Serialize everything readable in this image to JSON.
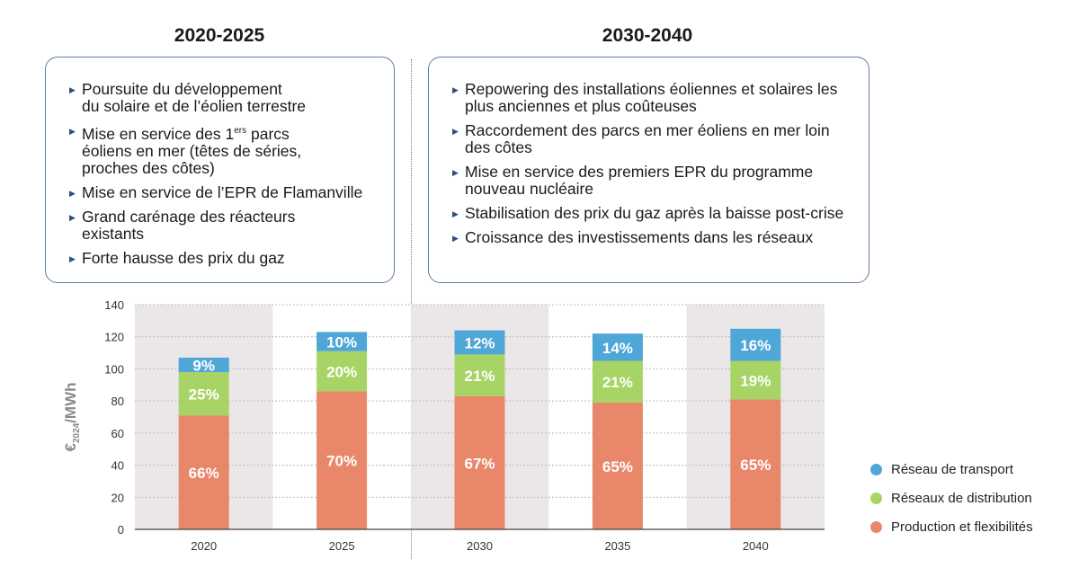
{
  "periods": [
    {
      "title": "2020-2025",
      "bullets": [
        "Poursuite du développement du solaire et de l’éolien terrestre",
        "Mise en service des 1ers parcs éoliens en mer (têtes de séries, proches des côtes)",
        "Mise en service de l’EPR de Flamanville",
        "Grand carénage des réacteurs existants",
        "Forte hausse des prix du gaz"
      ]
    },
    {
      "title": "2030-2040",
      "bullets": [
        "Repowering des installations éoliennes et solaires les plus anciennes et plus coûteuses",
        "Raccordement des parcs en mer éoliens en mer loin des côtes",
        "Mise en service des premiers EPR du programme nouveau nucléaire",
        "Stabilisation des prix du gaz après la baisse post-crise",
        "Croissance des investissements dans les réseaux"
      ]
    }
  ],
  "chart_data": {
    "type": "bar",
    "stacked": true,
    "categories": [
      "2020",
      "2025",
      "2030",
      "2035",
      "2040"
    ],
    "ylabel": "€2024/MWh",
    "ylim": [
      0,
      140
    ],
    "yticks": [
      0,
      20,
      40,
      60,
      80,
      100,
      120,
      140
    ],
    "series": [
      {
        "name": "Production et flexibilités",
        "color": "#e9876b",
        "values": [
          71,
          86,
          83,
          79,
          81
        ],
        "labels": [
          "66%",
          "70%",
          "67%",
          "65%",
          "65%"
        ]
      },
      {
        "name": "Réseaux de distribution",
        "color": "#a8d465",
        "values": [
          27,
          25,
          26,
          26,
          24
        ],
        "labels": [
          "25%",
          "20%",
          "21%",
          "21%",
          "19%"
        ]
      },
      {
        "name": "Réseau de transport",
        "color": "#4ea7d6",
        "values": [
          9,
          12,
          15,
          17,
          20
        ],
        "labels": [
          "9%",
          "10%",
          "12%",
          "14%",
          "16%"
        ]
      }
    ],
    "grid": true,
    "legend_position": "right"
  }
}
